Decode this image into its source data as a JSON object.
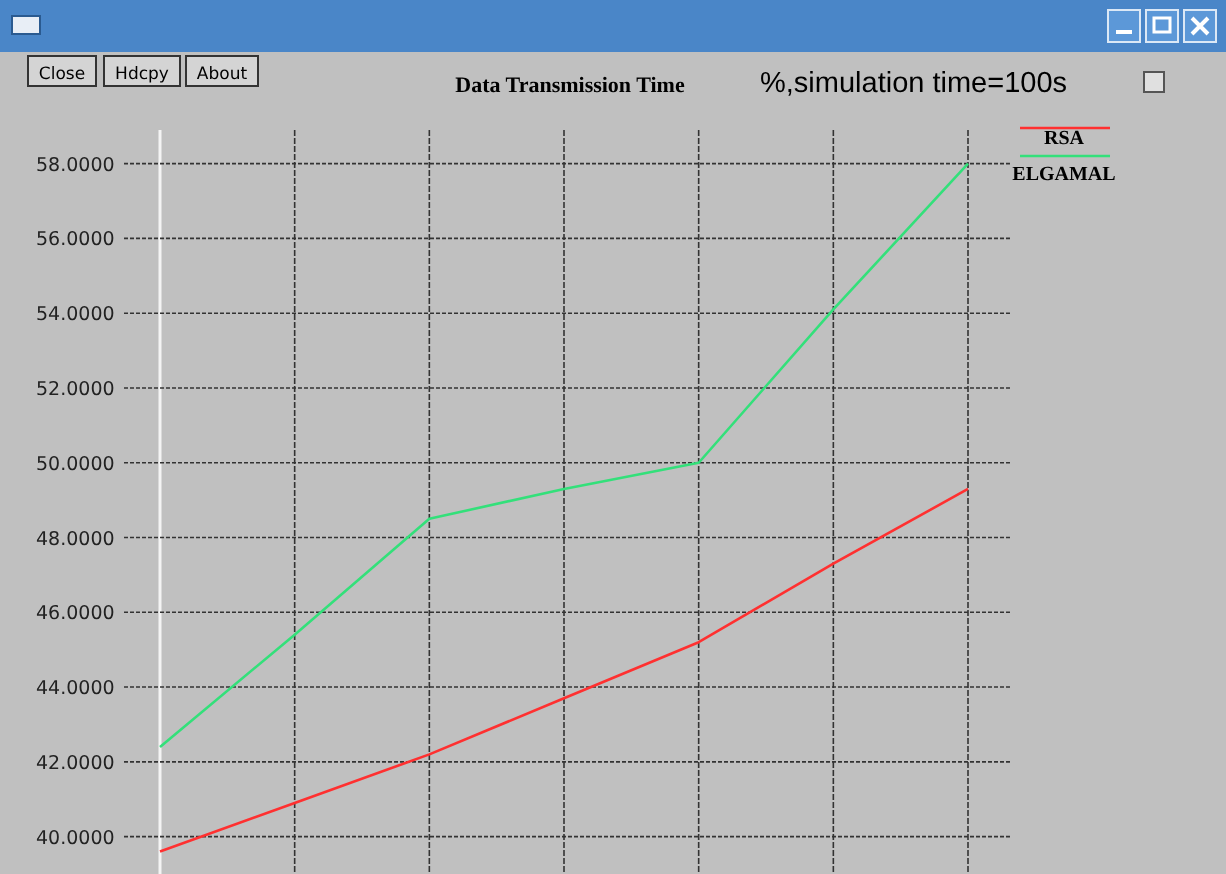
{
  "chart_data": {
    "type": "line",
    "title": "Data Transmission Time",
    "subtitle": "%,simulation time=100s",
    "annotations": [
      "Close",
      "Hdcpy",
      "About"
    ],
    "categories": [
      null,
      null,
      null,
      null,
      null,
      null,
      null
    ],
    "series": [
      {
        "name": "RSA",
        "color": "#ff3030",
        "values": [
          39.6,
          40.9,
          42.2,
          43.7,
          45.2,
          47.3,
          49.3
        ]
      },
      {
        "name": "ELGAMAL",
        "color": "#33e07a",
        "values": [
          42.4,
          45.4,
          48.5,
          49.3,
          50.0,
          54.1,
          58.0
        ]
      }
    ],
    "ylim": [
      39,
      58.9
    ],
    "yticks": [
      {
        "value": 40,
        "label": "40.0000"
      },
      {
        "value": 42,
        "label": "42.0000"
      },
      {
        "value": 44,
        "label": "44.0000"
      },
      {
        "value": 46,
        "label": "46.0000"
      },
      {
        "value": 48,
        "label": "48.0000"
      },
      {
        "value": 50,
        "label": "50.0000"
      },
      {
        "value": 52,
        "label": "52.0000"
      },
      {
        "value": 54,
        "label": "54.0000"
      },
      {
        "value": 56,
        "label": "56.0000"
      },
      {
        "value": 58,
        "label": "58.0000"
      }
    ],
    "grid": true,
    "legend": "top right",
    "tick_labels": "y",
    "marker": "none",
    "line_style": "solid"
  }
}
